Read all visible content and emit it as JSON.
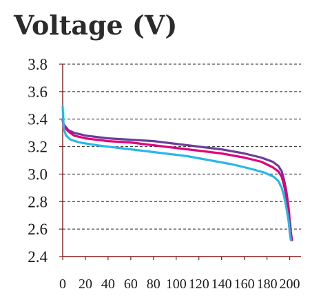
{
  "chart_data": {
    "type": "line",
    "title": "Voltage (V)",
    "xlabel": "",
    "ylabel": "",
    "xlim": [
      0,
      210
    ],
    "ylim": [
      2.4,
      3.8
    ],
    "x_ticks": [
      0,
      20,
      40,
      60,
      80,
      100,
      120,
      140,
      160,
      180,
      200
    ],
    "y_ticks": [
      "2.4",
      "2.6",
      "2.8",
      "3.0",
      "3.2",
      "3.4",
      "3.6",
      "3.8"
    ],
    "grid": "horizontal-dashed",
    "series": [
      {
        "color": "#6a3d97",
        "points": [
          [
            0,
            3.4
          ],
          [
            1,
            3.36
          ],
          [
            5,
            3.32
          ],
          [
            10,
            3.3
          ],
          [
            20,
            3.28
          ],
          [
            40,
            3.26
          ],
          [
            60,
            3.25
          ],
          [
            80,
            3.24
          ],
          [
            100,
            3.22
          ],
          [
            120,
            3.2
          ],
          [
            140,
            3.18
          ],
          [
            160,
            3.15
          ],
          [
            175,
            3.12
          ],
          [
            185,
            3.09
          ],
          [
            190,
            3.06
          ],
          [
            193,
            3.02
          ],
          [
            195,
            2.96
          ],
          [
            197,
            2.88
          ],
          [
            199,
            2.76
          ],
          [
            200,
            2.66
          ],
          [
            201,
            2.56
          ],
          [
            202,
            2.52
          ]
        ]
      },
      {
        "color": "#e0007a",
        "points": [
          [
            0,
            3.39
          ],
          [
            1,
            3.35
          ],
          [
            5,
            3.31
          ],
          [
            10,
            3.28
          ],
          [
            20,
            3.26
          ],
          [
            40,
            3.24
          ],
          [
            60,
            3.23
          ],
          [
            80,
            3.21
          ],
          [
            100,
            3.19
          ],
          [
            120,
            3.17
          ],
          [
            140,
            3.15
          ],
          [
            160,
            3.12
          ],
          [
            175,
            3.09
          ],
          [
            185,
            3.05
          ],
          [
            190,
            3.02
          ],
          [
            193,
            2.98
          ],
          [
            195,
            2.92
          ],
          [
            197,
            2.84
          ],
          [
            199,
            2.74
          ],
          [
            200,
            2.66
          ],
          [
            201,
            2.58
          ],
          [
            202,
            2.52
          ]
        ]
      },
      {
        "color": "#29b6e8",
        "points": [
          [
            0,
            3.49
          ],
          [
            0.5,
            3.4
          ],
          [
            1,
            3.33
          ],
          [
            3,
            3.28
          ],
          [
            7,
            3.25
          ],
          [
            15,
            3.23
          ],
          [
            30,
            3.21
          ],
          [
            50,
            3.19
          ],
          [
            70,
            3.17
          ],
          [
            90,
            3.15
          ],
          [
            110,
            3.13
          ],
          [
            130,
            3.1
          ],
          [
            150,
            3.07
          ],
          [
            165,
            3.04
          ],
          [
            178,
            3.01
          ],
          [
            186,
            2.98
          ],
          [
            190,
            2.95
          ],
          [
            193,
            2.9
          ],
          [
            195,
            2.84
          ],
          [
            197,
            2.76
          ],
          [
            199,
            2.66
          ],
          [
            200,
            2.58
          ],
          [
            201,
            2.52
          ]
        ]
      }
    ]
  }
}
